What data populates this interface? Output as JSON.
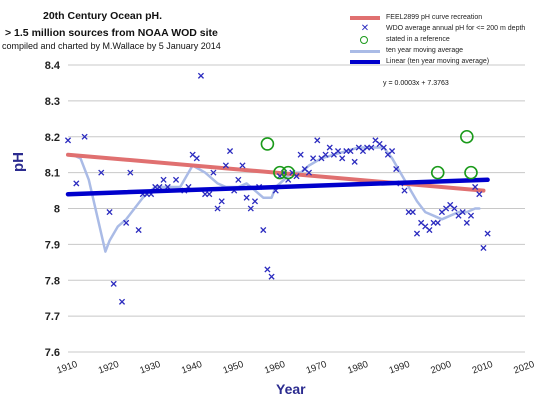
{
  "chart_data": {
    "type": "scatter",
    "title": "20th Century Ocean pH.",
    "subtitle": "> 1.5 million sources from NOAA WOD site",
    "credit": "compiled and charted by M.Wallace by 5 January 2014",
    "xlabel": "Year",
    "ylabel": "pH",
    "xlim": [
      1910,
      2020
    ],
    "ylim": [
      7.6,
      8.4
    ],
    "x_ticks": [
      1910,
      1920,
      1930,
      1940,
      1950,
      1960,
      1970,
      1980,
      1990,
      2000,
      2010,
      2020
    ],
    "y_ticks": [
      "7.6",
      "7.7",
      "7.8",
      "7.9",
      "8",
      "8.1",
      "8.2",
      "8.3",
      "8.4"
    ],
    "grid": "horizontal",
    "legend_position": "top-right",
    "equation": "y = 0.0003x + 7.3763",
    "series": [
      {
        "name": "FEEL2899 pH curve recreation",
        "kind": "line",
        "color": "#e07070",
        "x": [
          1910,
          2010
        ],
        "y": [
          8.15,
          8.05
        ]
      },
      {
        "name": "WDO average annual pH for <= 200 m depth",
        "kind": "markers",
        "color": "#2b2bbf",
        "marker": "x",
        "x": [
          1910,
          1912,
          1914,
          1918,
          1920,
          1921,
          1923,
          1924,
          1925,
          1927,
          1928,
          1929,
          1930,
          1931,
          1932,
          1933,
          1934,
          1936,
          1938,
          1939,
          1940,
          1941,
          1942,
          1943,
          1944,
          1945,
          1946,
          1947,
          1948,
          1949,
          1950,
          1951,
          1952,
          1953,
          1954,
          1955,
          1956,
          1957,
          1958,
          1959,
          1960,
          1961,
          1962,
          1963,
          1964,
          1965,
          1966,
          1967,
          1968,
          1969,
          1970,
          1971,
          1972,
          1973,
          1974,
          1975,
          1976,
          1977,
          1978,
          1979,
          1980,
          1981,
          1982,
          1983,
          1984,
          1985,
          1986,
          1987,
          1988,
          1989,
          1990,
          1991,
          1992,
          1993,
          1994,
          1995,
          1996,
          1997,
          1998,
          1999,
          2000,
          2001,
          2002,
          2003,
          2004,
          2005,
          2006,
          2007,
          2008,
          2009,
          2010,
          2011
        ],
        "y": [
          8.19,
          8.07,
          8.2,
          8.1,
          7.99,
          7.79,
          7.74,
          7.96,
          8.1,
          7.94,
          8.04,
          8.04,
          8.04,
          8.06,
          8.06,
          8.08,
          8.06,
          8.08,
          8.05,
          8.06,
          8.15,
          8.14,
          8.37,
          8.04,
          8.04,
          8.1,
          8.0,
          8.02,
          8.12,
          8.16,
          8.05,
          8.08,
          8.12,
          8.03,
          8.0,
          8.02,
          8.06,
          7.94,
          7.83,
          7.81,
          8.05,
          8.09,
          8.1,
          8.08,
          8.1,
          8.09,
          8.15,
          8.11,
          8.1,
          8.14,
          8.19,
          8.14,
          8.15,
          8.17,
          8.15,
          8.16,
          8.14,
          8.16,
          8.16,
          8.13,
          8.17,
          8.16,
          8.17,
          8.17,
          8.19,
          8.18,
          8.17,
          8.15,
          8.16,
          8.11,
          8.07,
          8.05,
          7.99,
          7.99,
          7.93,
          7.96,
          7.95,
          7.94,
          7.96,
          7.96,
          7.99,
          8.0,
          8.01,
          8.0,
          7.98,
          7.99,
          7.96,
          7.98,
          8.06,
          8.04,
          7.89,
          7.93
        ]
      },
      {
        "name": "stated in a reference",
        "kind": "circles",
        "color": "#1a9a1a",
        "x": [
          1958,
          1961,
          1963,
          1999,
          2006,
          2007
        ],
        "y": [
          8.18,
          8.1,
          8.1,
          8.1,
          8.2,
          8.1
        ]
      },
      {
        "name": "ten year moving average",
        "kind": "line",
        "color": "#aabbe6",
        "x": [
          1911,
          1913,
          1915,
          1917,
          1919,
          1920,
          1922,
          1924,
          1926,
          1928,
          1931,
          1934,
          1937,
          1940,
          1943,
          1946,
          1948,
          1951,
          1953,
          1955,
          1957,
          1959,
          1960,
          1962,
          1964,
          1966,
          1968,
          1971,
          1974,
          1977,
          1980,
          1983,
          1986,
          1988,
          1990,
          1992,
          1994,
          1996,
          1998,
          2000,
          2002,
          2004,
          2006,
          2008,
          2009
        ],
        "y": [
          8.15,
          8.14,
          8.08,
          7.98,
          7.88,
          7.91,
          7.95,
          7.97,
          8.0,
          8.03,
          8.06,
          8.06,
          8.06,
          8.12,
          8.1,
          8.07,
          8.06,
          8.06,
          8.07,
          8.05,
          8.03,
          8.03,
          8.06,
          8.08,
          8.1,
          8.1,
          8.12,
          8.14,
          8.15,
          8.16,
          8.17,
          8.17,
          8.17,
          8.14,
          8.1,
          8.06,
          8.02,
          7.99,
          7.98,
          7.97,
          7.98,
          7.99,
          7.99,
          8.0,
          8.0
        ]
      },
      {
        "name": "Linear (ten year moving average)",
        "kind": "line",
        "color": "#0000cc",
        "x": [
          1910,
          2011
        ],
        "y": [
          8.04,
          8.08
        ]
      }
    ]
  }
}
